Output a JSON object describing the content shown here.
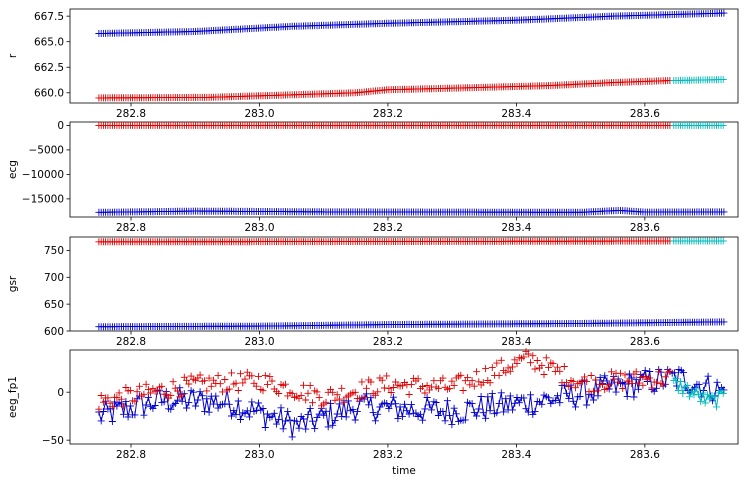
{
  "chart_data": {
    "type": "line",
    "shared_x": {
      "label": "time",
      "range": [
        282.705,
        283.745
      ],
      "ticks": [
        282.8,
        283.0,
        283.2,
        283.4,
        283.6
      ],
      "tick_labels": [
        "282.8",
        "283.0",
        "283.2",
        "283.4",
        "283.6"
      ]
    },
    "colors": {
      "blue": "#0000cc",
      "red": "#dd0000",
      "cyan": "#00bbbb"
    },
    "panels": [
      {
        "ylabel": "r",
        "ylim": [
          659.0,
          668.2
        ],
        "yticks": [
          660.0,
          662.5,
          665.0,
          667.5
        ],
        "ytick_labels": [
          "660.0",
          "662.5",
          "665.0",
          "667.5"
        ],
        "series": [
          {
            "color": "blue",
            "x_range": [
              282.75,
              283.725
            ],
            "y_anchors": [
              [
                282.75,
                665.8
              ],
              [
                282.9,
                666.0
              ],
              [
                283.05,
                666.5
              ],
              [
                283.2,
                666.8
              ],
              [
                283.4,
                667.1
              ],
              [
                283.55,
                667.5
              ],
              [
                283.725,
                667.8
              ]
            ]
          },
          {
            "color": "red",
            "x_range": [
              282.75,
              283.64
            ],
            "y_anchors": [
              [
                282.75,
                659.5
              ],
              [
                282.92,
                659.55
              ],
              [
                283.05,
                659.8
              ],
              [
                283.15,
                660.0
              ],
              [
                283.2,
                660.3
              ],
              [
                283.3,
                660.45
              ],
              [
                283.45,
                660.7
              ],
              [
                283.55,
                661.0
              ],
              [
                283.64,
                661.2
              ]
            ]
          },
          {
            "color": "cyan",
            "x_range": [
              283.645,
              283.725
            ],
            "y_anchors": [
              [
                283.645,
                661.2
              ],
              [
                283.725,
                661.3
              ]
            ]
          }
        ]
      },
      {
        "ylabel": "ecg",
        "ylim": [
          -18700,
          700
        ],
        "yticks": [
          0,
          -5000,
          -10000,
          -15000
        ],
        "ytick_labels": [
          "0",
          "−5000",
          "−10000",
          "−15000"
        ],
        "series": [
          {
            "color": "blue",
            "x_range": [
              282.75,
              283.725
            ],
            "y_anchors": [
              [
                282.75,
                -17750
              ],
              [
                282.9,
                -17500
              ],
              [
                283.1,
                -17650
              ],
              [
                283.3,
                -17700
              ],
              [
                283.5,
                -17750
              ],
              [
                283.56,
                -17350
              ],
              [
                283.6,
                -17700
              ],
              [
                283.725,
                -17650
              ]
            ]
          },
          {
            "color": "red",
            "x_range": [
              282.75,
              283.64
            ],
            "y_anchors": [
              [
                282.75,
                0
              ],
              [
                283.64,
                0
              ]
            ]
          },
          {
            "color": "cyan",
            "x_range": [
              283.645,
              283.725
            ],
            "y_anchors": [
              [
                283.645,
                0
              ],
              [
                283.725,
                0
              ]
            ]
          }
        ]
      },
      {
        "ylabel": "gsr",
        "ylim": [
          600,
          775
        ],
        "yticks": [
          600,
          650,
          700,
          750
        ],
        "ytick_labels": [
          "600",
          "650",
          "700",
          "750"
        ],
        "series": [
          {
            "color": "blue",
            "x_range": [
              282.75,
              283.725
            ],
            "y_anchors": [
              [
                282.75,
                608
              ],
              [
                283.0,
                609
              ],
              [
                283.2,
                612
              ],
              [
                283.5,
                614
              ],
              [
                283.725,
                617
              ]
            ]
          },
          {
            "color": "red",
            "x_range": [
              282.75,
              283.64
            ],
            "y_anchors": [
              [
                282.75,
                766
              ],
              [
                283.45,
                767
              ],
              [
                283.64,
                767.5
              ]
            ]
          },
          {
            "color": "cyan",
            "x_range": [
              283.645,
              283.725
            ],
            "y_anchors": [
              [
                283.645,
                767.5
              ],
              [
                283.725,
                767.5
              ]
            ]
          }
        ]
      },
      {
        "ylabel": "eeg_fp1",
        "ylim": [
          -54,
          44
        ],
        "yticks": [
          -50,
          0
        ],
        "ytick_labels": [
          "−50",
          "0"
        ],
        "series": [
          {
            "color": "blue",
            "x_range": [
              282.75,
              283.725
            ],
            "y_anchors": [
              [
                282.75,
                -25
              ],
              [
                282.85,
                -8
              ],
              [
                282.95,
                -10
              ],
              [
                283.06,
                -35
              ],
              [
                283.15,
                -15
              ],
              [
                283.3,
                -20
              ],
              [
                283.45,
                -8
              ],
              [
                283.55,
                5
              ],
              [
                283.65,
                15
              ],
              [
                283.725,
                0
              ]
            ],
            "noise": 14,
            "connected": true
          },
          {
            "color": "red",
            "x_range": [
              282.75,
              283.64
            ],
            "y_anchors": [
              [
                282.75,
                -10
              ],
              [
                282.9,
                8
              ],
              [
                283.0,
                12
              ],
              [
                283.1,
                -5
              ],
              [
                283.2,
                8
              ],
              [
                283.3,
                5
              ],
              [
                283.42,
                35
              ],
              [
                283.5,
                10
              ],
              [
                283.64,
                15
              ]
            ],
            "noise": 10,
            "connected": false
          },
          {
            "color": "cyan",
            "x_range": [
              283.645,
              283.725
            ],
            "y_anchors": [
              [
                283.645,
                10
              ],
              [
                283.7,
                -10
              ],
              [
                283.725,
                -5
              ]
            ],
            "noise": 8,
            "connected": true
          }
        ]
      }
    ]
  }
}
